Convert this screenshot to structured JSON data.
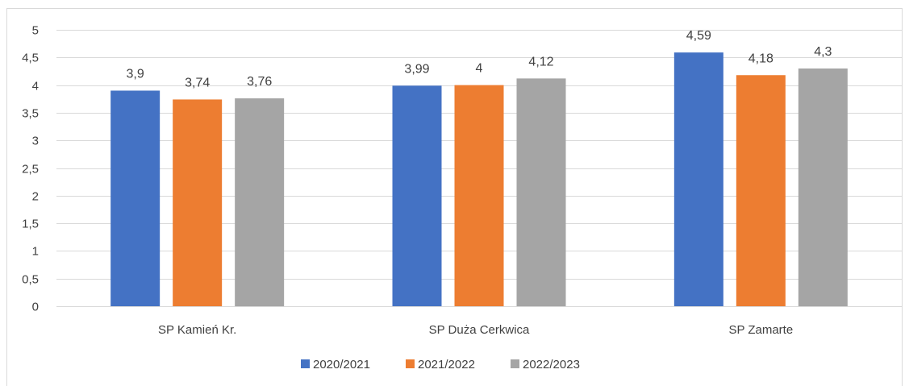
{
  "chart_data": {
    "type": "bar",
    "categories": [
      "SP Kamień Kr.",
      "SP Duża Cerkwica",
      "SP Zamarte"
    ],
    "series": [
      {
        "name": "2020/2021",
        "color": "#4472c4",
        "values": [
          3.9,
          3.99,
          4.59
        ],
        "labels": [
          "3,9",
          "3,99",
          "4,59"
        ]
      },
      {
        "name": "2021/2022",
        "color": "#ed7d31",
        "values": [
          3.74,
          4,
          4.18
        ],
        "labels": [
          "3,74",
          "4",
          "4,18"
        ]
      },
      {
        "name": "2022/2023",
        "color": "#a5a5a5",
        "values": [
          3.76,
          4.12,
          4.3
        ],
        "labels": [
          "3,76",
          "4,12",
          "4,3"
        ]
      }
    ],
    "ylim": [
      0,
      5
    ],
    "yticks": [
      0,
      0.5,
      1,
      1.5,
      2,
      2.5,
      3,
      3.5,
      4,
      4.5,
      5
    ],
    "ytick_labels": [
      "0",
      "0,5",
      "1",
      "1,5",
      "2",
      "2,5",
      "3",
      "3,5",
      "4",
      "4,5",
      "5"
    ],
    "grid": true,
    "legend_position": "bottom",
    "gridline_color": "#d9d9d9"
  }
}
